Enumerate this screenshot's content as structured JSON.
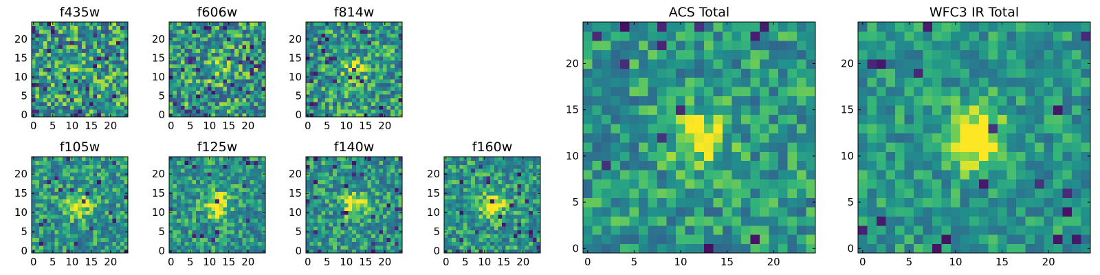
{
  "chart_data": [
    {
      "type": "heatmap",
      "title": "f435w",
      "xticks": [
        "0",
        "5",
        "10",
        "15",
        "20"
      ],
      "yticks": [
        "0",
        "5",
        "10",
        "15",
        "20"
      ],
      "xlim": [
        -0.5,
        24.5
      ],
      "ylim": [
        -0.5,
        24.5
      ],
      "grid_size": 25,
      "colormap": "viridis",
      "center_bright": 0.1,
      "noise": 0.62,
      "dark_fraction": 0.05,
      "seed": 11
    },
    {
      "type": "heatmap",
      "title": "f606w",
      "xticks": [
        "0",
        "5",
        "10",
        "15",
        "20"
      ],
      "yticks": [
        "0",
        "5",
        "10",
        "15",
        "20"
      ],
      "xlim": [
        -0.5,
        24.5
      ],
      "ylim": [
        -0.5,
        24.5
      ],
      "grid_size": 25,
      "colormap": "viridis",
      "center_bright": 0.2,
      "noise": 0.6,
      "dark_fraction": 0.05,
      "seed": 23
    },
    {
      "type": "heatmap",
      "title": "f814w",
      "xticks": [
        "0",
        "5",
        "10",
        "15",
        "20"
      ],
      "yticks": [
        "0",
        "5",
        "10",
        "15",
        "20"
      ],
      "xlim": [
        -0.5,
        24.5
      ],
      "ylim": [
        -0.5,
        24.5
      ],
      "grid_size": 25,
      "colormap": "viridis",
      "center_bright": 0.25,
      "noise": 0.55,
      "dark_fraction": 0.05,
      "seed": 37
    },
    {
      "type": "heatmap",
      "title": "f105w",
      "xticks": [
        "0",
        "5",
        "10",
        "15",
        "20"
      ],
      "yticks": [
        "0",
        "5",
        "10",
        "15",
        "20"
      ],
      "xlim": [
        -0.5,
        24.5
      ],
      "ylim": [
        -0.5,
        24.5
      ],
      "grid_size": 25,
      "colormap": "viridis",
      "center_bright": 0.4,
      "noise": 0.45,
      "dark_fraction": 0.04,
      "seed": 41
    },
    {
      "type": "heatmap",
      "title": "f125w",
      "xticks": [
        "0",
        "5",
        "10",
        "15",
        "20"
      ],
      "yticks": [
        "0",
        "5",
        "10",
        "15",
        "20"
      ],
      "xlim": [
        -0.5,
        24.5
      ],
      "ylim": [
        -0.5,
        24.5
      ],
      "grid_size": 25,
      "colormap": "viridis",
      "center_bright": 0.45,
      "noise": 0.45,
      "dark_fraction": 0.03,
      "seed": 53
    },
    {
      "type": "heatmap",
      "title": "f140w",
      "xticks": [
        "0",
        "5",
        "10",
        "15",
        "20"
      ],
      "yticks": [
        "0",
        "5",
        "10",
        "15",
        "20"
      ],
      "xlim": [
        -0.5,
        24.5
      ],
      "ylim": [
        -0.5,
        24.5
      ],
      "grid_size": 25,
      "colormap": "viridis",
      "center_bright": 0.4,
      "noise": 0.45,
      "dark_fraction": 0.04,
      "seed": 67
    },
    {
      "type": "heatmap",
      "title": "f160w",
      "xticks": [
        "0",
        "5",
        "10",
        "15",
        "20"
      ],
      "yticks": [
        "0",
        "5",
        "10",
        "15",
        "20"
      ],
      "xlim": [
        -0.5,
        24.5
      ],
      "ylim": [
        -0.5,
        24.5
      ],
      "grid_size": 25,
      "colormap": "viridis",
      "center_bright": 0.4,
      "noise": 0.45,
      "dark_fraction": 0.05,
      "seed": 79
    },
    {
      "type": "heatmap",
      "title": "ACS Total",
      "xticks": [
        "0",
        "5",
        "10",
        "15",
        "20"
      ],
      "yticks": [
        "0",
        "5",
        "10",
        "15",
        "20"
      ],
      "xlim": [
        -0.5,
        24.5
      ],
      "ylim": [
        -0.5,
        24.5
      ],
      "grid_size": 25,
      "colormap": "viridis",
      "center_bright": 0.35,
      "noise": 0.42,
      "dark_fraction": 0.03,
      "seed": 97
    },
    {
      "type": "heatmap",
      "title": "WFC3 IR Total",
      "xticks": [
        "0",
        "5",
        "10",
        "15",
        "20"
      ],
      "yticks": [
        "0",
        "5",
        "10",
        "15",
        "20"
      ],
      "xlim": [
        -0.5,
        24.5
      ],
      "ylim": [
        -0.5,
        24.5
      ],
      "grid_size": 25,
      "colormap": "viridis",
      "center_bright": 0.55,
      "noise": 0.35,
      "dark_fraction": 0.03,
      "seed": 113
    }
  ]
}
